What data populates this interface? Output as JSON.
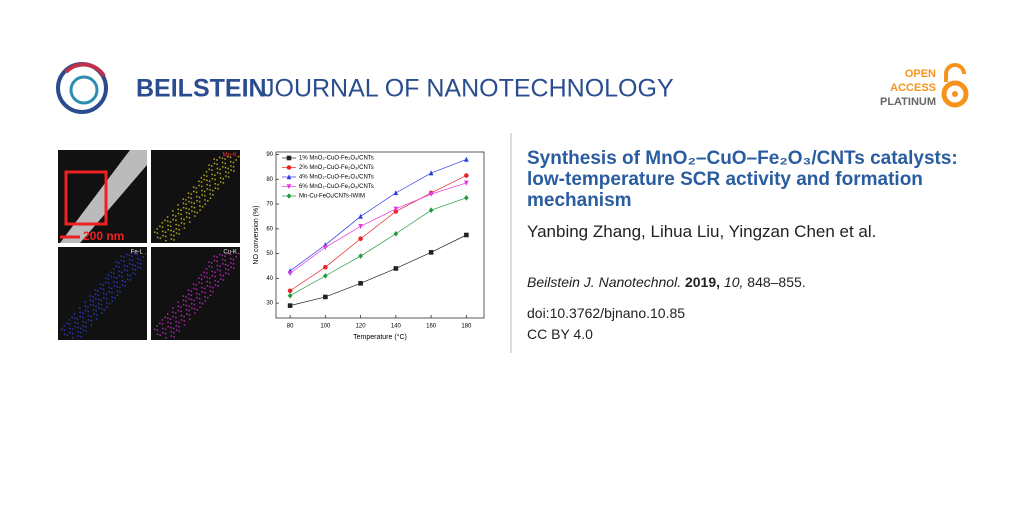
{
  "header": {
    "brand_bold": "BEILSTEIN",
    "brand_light": "JOURNAL OF NANOTECHNOLOGY",
    "oa_line1": "OPEN",
    "oa_line2": "ACCESS",
    "oa_line3": "PLATINUM"
  },
  "graphic": {
    "scale_bar": "200 nm",
    "panels": [
      "Mn-K",
      "Fe-L",
      "Cu-K"
    ]
  },
  "chart_data": {
    "type": "line",
    "x_label": "Temperature (°C)",
    "y_label": "NO conversion (%)",
    "x": [
      80,
      100,
      120,
      140,
      160,
      180
    ],
    "xlim": [
      72,
      190
    ],
    "xticks": [
      80,
      100,
      120,
      140,
      160,
      180
    ],
    "ylim": [
      24,
      91
    ],
    "yticks": [
      30,
      40,
      50,
      60,
      70,
      80,
      90
    ],
    "series": [
      {
        "name": "1% MnO₂-CuO-Fe₂O₃/CNTs",
        "color": "#222222",
        "marker": "square",
        "values": [
          29,
          32.5,
          38,
          44,
          50.5,
          57.5
        ]
      },
      {
        "name": "2% MnO₂-CuO-Fe₂O₃/CNTs",
        "color": "#e8262a",
        "marker": "circle",
        "values": [
          35,
          44.5,
          56,
          67,
          74.5,
          81.5
        ]
      },
      {
        "name": "4% MnO₂-CuO-Fe₂O₃/CNTs",
        "color": "#2b3de0",
        "marker": "triangle",
        "values": [
          43,
          53.5,
          65,
          74.5,
          82.5,
          88
        ]
      },
      {
        "name": "6% MnO₂-CuO-Fe₂O₃/CNTs",
        "color": "#e23ae0",
        "marker": "triangle-down",
        "values": [
          42,
          52.5,
          61,
          68,
          74,
          78.5
        ]
      },
      {
        "name": "Mn-Cu-FeOₓ/CNTs-IWIM",
        "color": "#1e9a3a",
        "marker": "diamond",
        "values": [
          33,
          41,
          49,
          58,
          67.5,
          72.5
        ]
      }
    ]
  },
  "article": {
    "title": "Synthesis of MnO₂–CuO–Fe₂O₃/CNTs catalysts: low-temperature SCR activity and formation mechanism",
    "authors": "Yanbing Zhang, Lihua Liu, Yingzan Chen et al.",
    "journal": "Beilstein J. Nanotechnol.",
    "year": "2019,",
    "volume": "10,",
    "pages": "848–855.",
    "doi": "doi:10.3762/bjnano.10.85",
    "license": "CC BY 4.0"
  }
}
